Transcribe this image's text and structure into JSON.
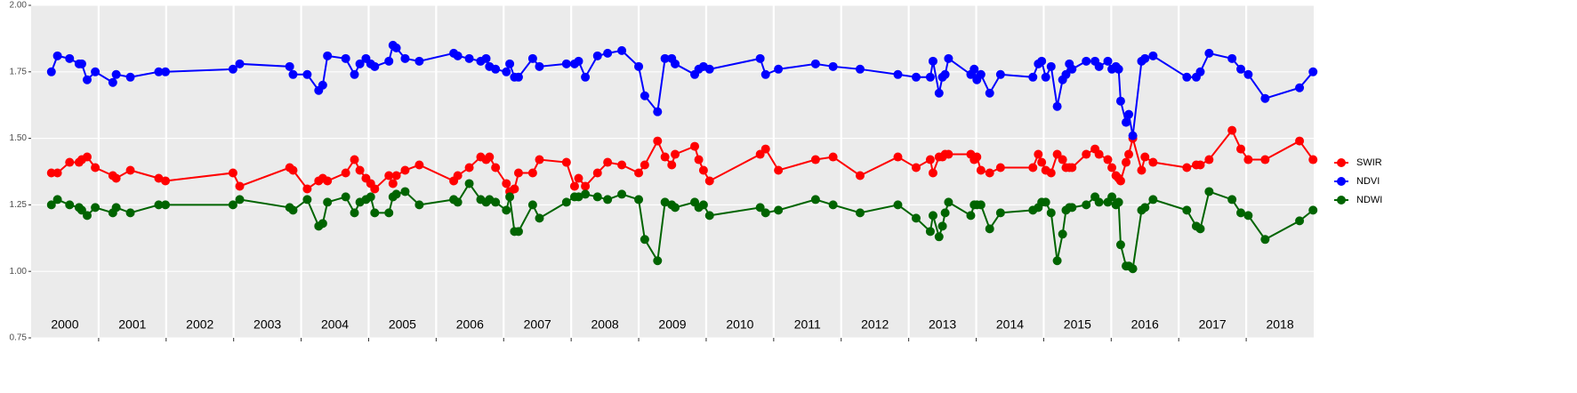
{
  "chart_data": {
    "type": "line",
    "x": [
      2000.3,
      2000.39,
      2000.57,
      2000.71,
      2000.75,
      2000.83,
      2000.95,
      2001.21,
      2001.26,
      2001.47,
      2001.89,
      2001.99,
      2002.99,
      2003.09,
      2003.83,
      2003.88,
      2004.09,
      2004.26,
      2004.32,
      2004.39,
      2004.66,
      2004.79,
      2004.87,
      2004.96,
      2005.03,
      2005.09,
      2005.3,
      2005.36,
      2005.41,
      2005.54,
      2005.75,
      2006.26,
      2006.32,
      2006.49,
      2006.66,
      2006.74,
      2006.79,
      2006.88,
      2007.04,
      2007.09,
      2007.16,
      2007.22,
      2007.43,
      2007.53,
      2007.93,
      2008.05,
      2008.11,
      2008.21,
      2008.39,
      2008.54,
      2008.75,
      2009.0,
      2009.09,
      2009.28,
      2009.39,
      2009.49,
      2009.54,
      2009.83,
      2009.89,
      2009.96,
      2010.05,
      2010.8,
      2010.88,
      2011.07,
      2011.62,
      2011.88,
      2012.28,
      2012.84,
      2013.11,
      2013.32,
      2013.36,
      2013.45,
      2013.5,
      2013.54,
      2013.59,
      2013.92,
      2013.97,
      2014.01,
      2014.07,
      2014.2,
      2014.36,
      2014.84,
      2014.92,
      2014.97,
      2015.03,
      2015.11,
      2015.2,
      2015.28,
      2015.33,
      2015.38,
      2015.42,
      2015.63,
      2015.76,
      2015.82,
      2015.95,
      2016.01,
      2016.07,
      2016.11,
      2016.14,
      2016.22,
      2016.26,
      2016.32,
      2016.45,
      2016.5,
      2016.62,
      2017.12,
      2017.26,
      2017.32,
      2017.45,
      2017.79,
      2017.92,
      2018.03,
      2018.28,
      2018.79,
      2018.99
    ],
    "series": [
      {
        "name": "SWIR",
        "color": "#ff0000",
        "values": [
          1.37,
          1.37,
          1.41,
          1.41,
          1.42,
          1.43,
          1.39,
          1.36,
          1.35,
          1.38,
          1.35,
          1.34,
          1.37,
          1.32,
          1.39,
          1.38,
          1.31,
          1.34,
          1.35,
          1.34,
          1.37,
          1.42,
          1.38,
          1.35,
          1.33,
          1.31,
          1.36,
          1.33,
          1.36,
          1.38,
          1.4,
          1.34,
          1.36,
          1.39,
          1.43,
          1.42,
          1.43,
          1.39,
          1.33,
          1.3,
          1.31,
          1.37,
          1.37,
          1.42,
          1.41,
          1.32,
          1.35,
          1.32,
          1.37,
          1.41,
          1.4,
          1.37,
          1.4,
          1.49,
          1.43,
          1.4,
          1.44,
          1.47,
          1.42,
          1.38,
          1.34,
          1.44,
          1.46,
          1.38,
          1.42,
          1.43,
          1.36,
          1.43,
          1.39,
          1.42,
          1.37,
          1.43,
          1.43,
          1.44,
          1.44,
          1.44,
          1.42,
          1.43,
          1.38,
          1.37,
          1.39,
          1.39,
          1.44,
          1.41,
          1.38,
          1.37,
          1.44,
          1.42,
          1.39,
          1.39,
          1.39,
          1.44,
          1.46,
          1.44,
          1.42,
          1.39,
          1.36,
          1.35,
          1.34,
          1.41,
          1.44,
          1.5,
          1.38,
          1.43,
          1.41,
          1.39,
          1.4,
          1.4,
          1.42,
          1.53,
          1.46,
          1.42,
          1.42,
          1.49,
          1.42
        ]
      },
      {
        "name": "NDVI",
        "color": "#0000ff",
        "values": [
          1.75,
          1.81,
          1.8,
          1.78,
          1.78,
          1.72,
          1.75,
          1.71,
          1.74,
          1.73,
          1.75,
          1.75,
          1.76,
          1.78,
          1.77,
          1.74,
          1.74,
          1.68,
          1.7,
          1.81,
          1.8,
          1.74,
          1.78,
          1.8,
          1.78,
          1.77,
          1.79,
          1.85,
          1.84,
          1.8,
          1.79,
          1.82,
          1.81,
          1.8,
          1.79,
          1.8,
          1.77,
          1.76,
          1.75,
          1.78,
          1.73,
          1.73,
          1.8,
          1.77,
          1.78,
          1.78,
          1.79,
          1.73,
          1.81,
          1.82,
          1.83,
          1.77,
          1.66,
          1.6,
          1.8,
          1.8,
          1.78,
          1.74,
          1.76,
          1.77,
          1.76,
          1.8,
          1.74,
          1.76,
          1.78,
          1.77,
          1.76,
          1.74,
          1.73,
          1.73,
          1.79,
          1.67,
          1.73,
          1.74,
          1.8,
          1.74,
          1.76,
          1.72,
          1.74,
          1.67,
          1.74,
          1.73,
          1.78,
          1.79,
          1.73,
          1.77,
          1.62,
          1.72,
          1.74,
          1.78,
          1.76,
          1.79,
          1.79,
          1.77,
          1.79,
          1.76,
          1.77,
          1.76,
          1.64,
          1.56,
          1.59,
          1.51,
          1.79,
          1.8,
          1.81,
          1.73,
          1.73,
          1.75,
          1.82,
          1.8,
          1.76,
          1.74,
          1.65,
          1.69,
          1.75
        ]
      },
      {
        "name": "NDWI",
        "color": "#006400",
        "values": [
          1.25,
          1.27,
          1.25,
          1.24,
          1.23,
          1.21,
          1.24,
          1.22,
          1.24,
          1.22,
          1.25,
          1.25,
          1.25,
          1.27,
          1.24,
          1.23,
          1.27,
          1.17,
          1.18,
          1.26,
          1.28,
          1.22,
          1.26,
          1.27,
          1.28,
          1.22,
          1.22,
          1.28,
          1.29,
          1.3,
          1.25,
          1.27,
          1.26,
          1.33,
          1.27,
          1.26,
          1.27,
          1.26,
          1.23,
          1.28,
          1.15,
          1.15,
          1.25,
          1.2,
          1.26,
          1.28,
          1.28,
          1.29,
          1.28,
          1.27,
          1.29,
          1.27,
          1.12,
          1.04,
          1.26,
          1.25,
          1.24,
          1.26,
          1.24,
          1.25,
          1.21,
          1.24,
          1.22,
          1.23,
          1.27,
          1.25,
          1.22,
          1.25,
          1.2,
          1.15,
          1.21,
          1.13,
          1.17,
          1.22,
          1.26,
          1.21,
          1.25,
          1.25,
          1.25,
          1.16,
          1.22,
          1.23,
          1.24,
          1.26,
          1.26,
          1.22,
          1.04,
          1.14,
          1.23,
          1.24,
          1.24,
          1.25,
          1.28,
          1.26,
          1.26,
          1.28,
          1.25,
          1.26,
          1.1,
          1.02,
          1.02,
          1.01,
          1.23,
          1.24,
          1.27,
          1.23,
          1.17,
          1.16,
          1.3,
          1.27,
          1.22,
          1.21,
          1.12,
          1.19,
          1.23
        ]
      }
    ],
    "xlim": [
      2000,
      2019
    ],
    "xbreaks": [
      2001,
      2002,
      2003,
      2004,
      2005,
      2006,
      2007,
      2008,
      2009,
      2010,
      2011,
      2012,
      2013,
      2014,
      2015,
      2016,
      2017,
      2018
    ],
    "xticks": [
      {
        "value": 2000.5,
        "label": "2000"
      },
      {
        "value": 2001.5,
        "label": "2001"
      },
      {
        "value": 2002.5,
        "label": "2002"
      },
      {
        "value": 2003.5,
        "label": "2003"
      },
      {
        "value": 2004.5,
        "label": "2004"
      },
      {
        "value": 2005.5,
        "label": "2005"
      },
      {
        "value": 2006.5,
        "label": "2006"
      },
      {
        "value": 2007.5,
        "label": "2007"
      },
      {
        "value": 2008.5,
        "label": "2008"
      },
      {
        "value": 2009.5,
        "label": "2009"
      },
      {
        "value": 2010.5,
        "label": "2010"
      },
      {
        "value": 2011.5,
        "label": "2011"
      },
      {
        "value": 2012.5,
        "label": "2012"
      },
      {
        "value": 2013.5,
        "label": "2013"
      },
      {
        "value": 2014.5,
        "label": "2014"
      },
      {
        "value": 2015.5,
        "label": "2015"
      },
      {
        "value": 2016.5,
        "label": "2016"
      },
      {
        "value": 2017.5,
        "label": "2017"
      },
      {
        "value": 2018.5,
        "label": "2018"
      }
    ],
    "ylim": [
      0.75,
      2.0
    ],
    "yticks": [
      0.75,
      {
        "value": 1.0,
        "label": "1.00"
      },
      1.25,
      {
        "value": 1.5,
        "label": "1.50"
      },
      1.75,
      {
        "value": 2.0,
        "label": "2.00"
      }
    ],
    "grid": true,
    "legend": "right"
  }
}
